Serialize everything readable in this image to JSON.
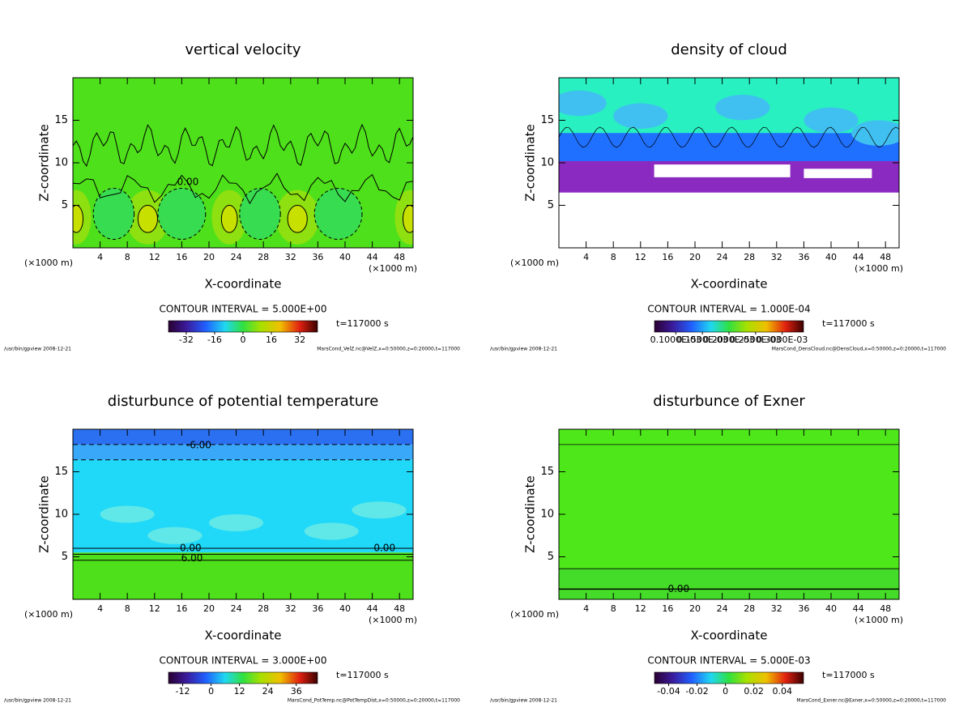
{
  "chart_data": [
    {
      "type": "contour",
      "title": "vertical velocity",
      "xlabel": "X-coordinate",
      "ylabel": "Z-coordinate",
      "xunit": "(×1000 m)",
      "xlim": [
        0,
        50
      ],
      "ylim": [
        0,
        20
      ],
      "xticks": [
        4,
        8,
        12,
        16,
        20,
        24,
        28,
        32,
        36,
        40,
        44,
        48
      ],
      "yticks": [
        5,
        10,
        15
      ],
      "contour_interval": "CONTOUR INTERVAL = 5.000E+00",
      "time": "t=117000 s",
      "clim": [
        -42,
        42
      ],
      "cticks": [
        -32,
        -16,
        0,
        16,
        32
      ],
      "annotations": [
        {
          "text": "0.00",
          "x": 16.9,
          "y": 7.7
        }
      ],
      "footer_left": "/usr/bin/gpview  2008-12-21",
      "footer_right": "MarsCond_VelZ.nc@VelZ,x=0:50000,z=0:20000,t=117000"
    },
    {
      "type": "contour",
      "title": "density of cloud",
      "xlabel": "X-coordinate",
      "ylabel": "Z-coordinate",
      "xunit": "(×1000 m)",
      "xlim": [
        0,
        50
      ],
      "ylim": [
        0,
        20
      ],
      "xticks": [
        4,
        8,
        12,
        16,
        20,
        24,
        28,
        32,
        36,
        40,
        44,
        48
      ],
      "yticks": [
        5,
        10,
        15
      ],
      "contour_interval": "CONTOUR INTERVAL = 1.000E-04",
      "time": "t=117000 s",
      "clim": [
        6e-05,
        0.00034
      ],
      "cticks": [
        {
          "value": 0.0001,
          "label": "0.1000E-03"
        },
        {
          "value": 0.00015,
          "label": "0.1500E-03"
        },
        {
          "value": 0.0002,
          "label": "0.2000E-03"
        },
        {
          "value": 0.00025,
          "label": "0.2500E-03"
        },
        {
          "value": 0.0003,
          "label": "0.3000E-03"
        }
      ],
      "annotations": [],
      "footer_left": "/usr/bin/gpview  2008-12-21",
      "footer_right": "MarsCond_DensCloud.nc@DensCloud,x=0:50000,z=0:20000,t=117000"
    },
    {
      "type": "contour",
      "title": "disturbunce of potential temperature",
      "xlabel": "X-coordinate",
      "ylabel": "Z-coordinate",
      "xunit": "(×1000 m)",
      "xlim": [
        0,
        50
      ],
      "ylim": [
        0,
        20
      ],
      "xticks": [
        4,
        8,
        12,
        16,
        20,
        24,
        28,
        32,
        36,
        40,
        44,
        48
      ],
      "yticks": [
        5,
        10,
        15
      ],
      "contour_interval": "CONTOUR INTERVAL = 3.000E+00",
      "time": "t=117000 s",
      "clim": [
        -18,
        45
      ],
      "cticks": [
        -12,
        0,
        12,
        24,
        36
      ],
      "annotations": [
        {
          "text": "-6.00",
          "x": 18.5,
          "y": 18.1
        },
        {
          "text": "0.00",
          "x": 17.3,
          "y": 6.0
        },
        {
          "text": "6.00",
          "x": 17.5,
          "y": 4.8
        },
        {
          "text": "0.00",
          "x": 45.8,
          "y": 6.0
        }
      ],
      "footer_left": "/usr/bin/gpview  2008-12-21",
      "footer_right": "MarsCond_PotTemp.nc@PotTempDist,x=0:50000,z=0:20000,t=117000"
    },
    {
      "type": "contour",
      "title": "disturbunce of Exner",
      "xlabel": "X-coordinate",
      "ylabel": "Z-coordinate",
      "xunit": "(×1000 m)",
      "xlim": [
        0,
        50
      ],
      "ylim": [
        0,
        20
      ],
      "xticks": [
        4,
        8,
        12,
        16,
        20,
        24,
        28,
        32,
        36,
        40,
        44,
        48
      ],
      "yticks": [
        5,
        10,
        15
      ],
      "contour_interval": "CONTOUR INTERVAL = 5.000E-03",
      "time": "t=117000 s",
      "clim": [
        -0.05,
        0.055
      ],
      "cticks": [
        -0.04,
        -0.02,
        0,
        0.02,
        0.04
      ],
      "annotations": [
        {
          "text": "0.00",
          "x": 17.6,
          "y": 1.2
        }
      ],
      "footer_left": "/usr/bin/gpview  2008-12-21",
      "footer_right": "MarsCond_Exner.nc@Exner,x=0:50000,z=0:20000,t=117000"
    }
  ]
}
